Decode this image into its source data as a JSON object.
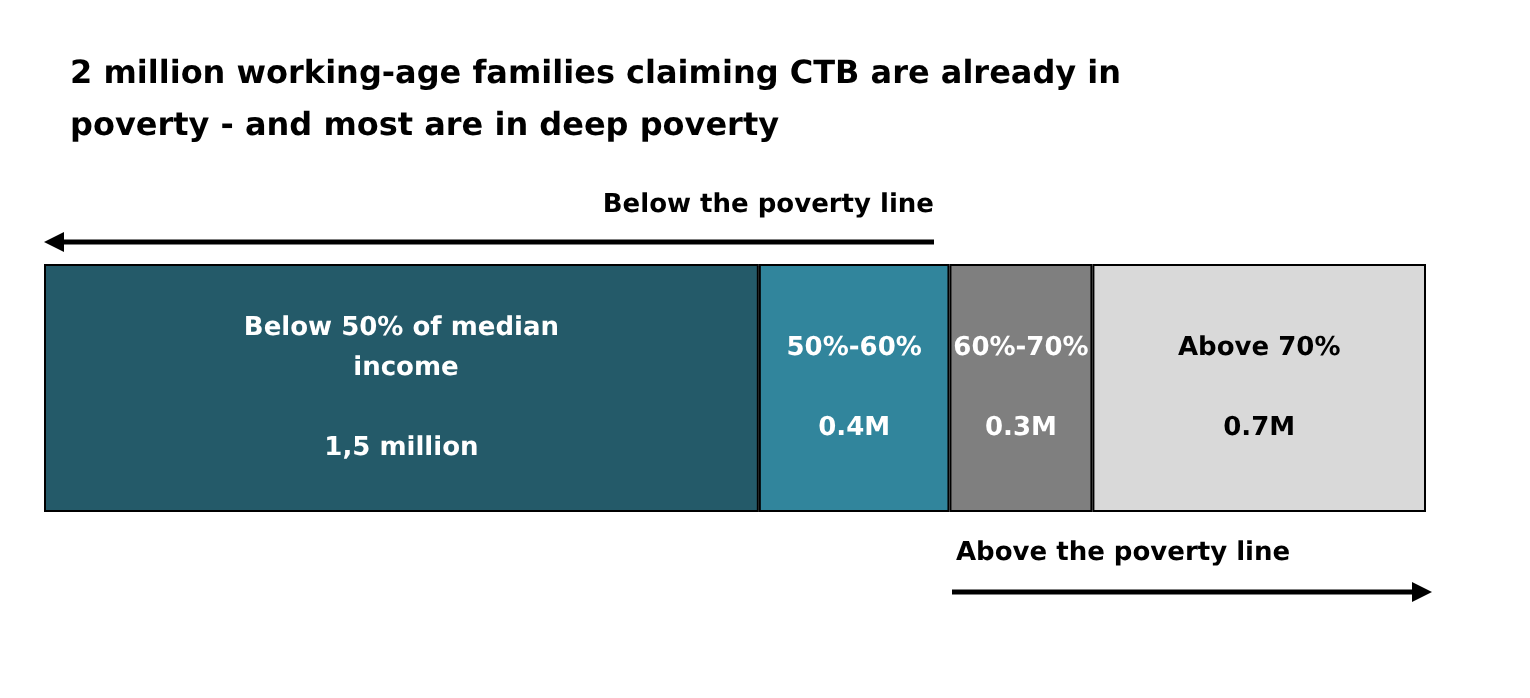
{
  "chart_data": {
    "type": "bar",
    "orientation": "horizontal",
    "stacked": true,
    "title": "2 million working-age families claiming CTB are already in poverty - and most are in deep poverty",
    "categories": [
      null
    ],
    "series": [
      {
        "name": "Below 50% of median income",
        "color": "#245a69",
        "values": [
          1.5
        ],
        "value_labels": [
          "1,5 million"
        ]
      },
      {
        "name": "50%-60%",
        "color": "#31859c",
        "values": [
          0.4
        ],
        "value_labels": [
          "0.4M"
        ]
      },
      {
        "name": "60%-70%",
        "color": "#7f7f7f",
        "values": [
          0.3
        ],
        "value_labels": [
          "0.3M"
        ]
      },
      {
        "name": "Above 70%",
        "color": "#d9d9d9",
        "values": [
          0.7
        ],
        "value_labels": [
          "0.7M"
        ]
      }
    ],
    "annotations": [
      "Below the poverty line",
      "Above the poverty line"
    ]
  }
}
